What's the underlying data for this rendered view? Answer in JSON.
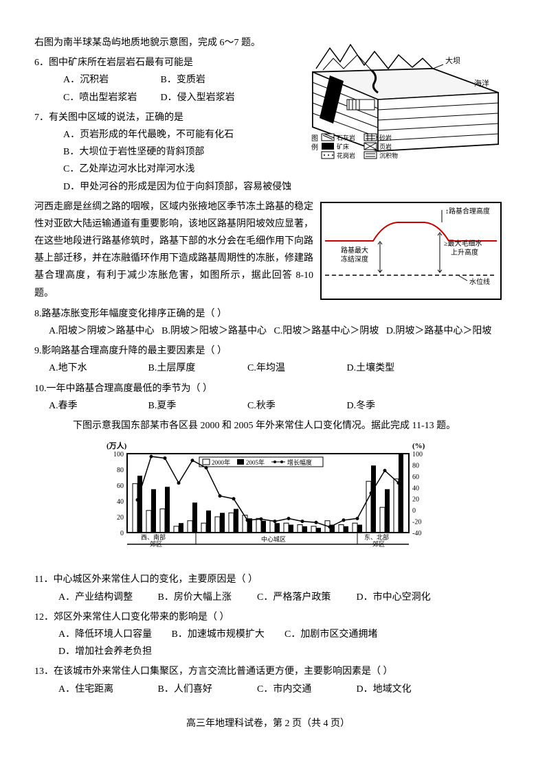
{
  "intro_6_7": "右图为南半球某岛屿地质地貌示意图，完成 6～7 题。",
  "q6": {
    "text": "6．图中矿床所在岩层岩石最有可能是",
    "A": "A．沉积岩",
    "B": "B．变质岩",
    "C": "C．喷出型岩浆岩",
    "D": "D．侵入型岩浆岩"
  },
  "q7": {
    "text": "7．有关图中区域的说法，正确的是",
    "A": "A．页岩形成的年代最晚，不可能有化石",
    "B": "B．大坝位于岩性坚硬的背斜顶部",
    "C": "C．乙处岸边河水比对岸河水浅",
    "D": "D．甲处河谷的形成是因为位于向斜顶部，容易被侵蚀"
  },
  "geo_diagram": {
    "labels": {
      "dam": "大坝",
      "ocean": "海洋",
      "legend_title": "图例",
      "limestone": "石灰岩",
      "ore": "矿床",
      "granite": "花岗岩",
      "sandstone": "砂岩",
      "shale": "页岩",
      "sediment": "沉积物"
    }
  },
  "intro_8_10": "        河西走廊是丝绸之路的咽喉，区域内张掖地区季节冻土路基的稳定性对亚欧大陆运输通道有重要影响，该地区路基阴阳坡效应显著，在这些地段进行路基修筑时，路基下部的水分会在毛细作用下向路基上部迁移，并在冻融循环作用下造成路基周期性的冻胀，修建路基合理高度，有利于减少冻胀危害，如图所示，据此回答 8-10 题。",
  "road_diagram": {
    "labels": {
      "height": "路基合理高度",
      "freeze_depth": "路基最大冻结深度",
      "capillary": "最大毛细水上升高度",
      "water_line": "水位线"
    },
    "road_color": "#cc0000"
  },
  "q8": {
    "text": "8.路基冻胀变形年幅度变化排序正确的是（    ）",
    "A": "A.阳坡＞阴坡＞路基中心",
    "B": "B.阴坡＞阳坡＞路基中心",
    "C": "C.阳坡＞路基中心＞阴坡",
    "D": "D.阴坡＞路基中心＞阳坡"
  },
  "q9": {
    "text": "9.影响路基合理高度升降的最主要因素是（    ）",
    "A": "A.地下水",
    "B": "B.土层厚度",
    "C": "C.年均温",
    "D": "D.土壤类型"
  },
  "q10": {
    "text": "10.一年中路基合理高度最低的季节为（    ）",
    "A": "A.春季",
    "B": "B.夏季",
    "C": "C.秋季",
    "D": "D.冬季"
  },
  "intro_11_13": "下图示意我国东部某市各区县 2000 和 2005 年外来常住人口变化情况。据此完成 11-13 题。",
  "chart": {
    "y1_label": "(万人)",
    "y2_label": "(%)",
    "y1_ticks": [
      "100",
      "80",
      "60",
      "40",
      "20",
      "0"
    ],
    "y2_ticks": [
      "100",
      "80",
      "60",
      "40",
      "20",
      "0",
      "-20",
      "-40"
    ],
    "legend": {
      "a": "2000年",
      "b": "2005年",
      "c": "增长幅度"
    },
    "x_sections": [
      "西、南部郊区",
      "中心城区",
      "东、北部郊区"
    ],
    "data_2000": [
      62,
      28,
      30,
      8,
      15,
      12,
      20,
      25,
      22,
      18,
      15,
      12,
      10,
      8,
      15,
      10,
      12,
      65,
      32,
      68
    ],
    "data_2005": [
      72,
      55,
      58,
      12,
      38,
      28,
      25,
      30,
      18,
      15,
      12,
      10,
      8,
      6,
      10,
      8,
      10,
      85,
      55,
      100
    ],
    "growth": [
      18,
      95,
      92,
      48,
      88,
      75,
      25,
      20,
      -18,
      -16,
      -20,
      -15,
      -20,
      -22,
      -30,
      -18,
      -15,
      30,
      70,
      48
    ],
    "colors": {
      "bar_2000": "#ffffff",
      "bar_2005": "#000000",
      "line": "#000000",
      "border": "#000000"
    }
  },
  "q11": {
    "text": "11．中心城区外来常住人口的变化，主要原因是（    ）",
    "A": "A．产业结构调整",
    "B": "B．房价大幅上涨",
    "C": "C．严格落户政策",
    "D": "D．市中心空洞化"
  },
  "q12": {
    "text": "12．郊区外来常住人口变化带来的影响是（    ）",
    "A": "A．降低环境人口容量",
    "B": "B．加速城市规模扩大",
    "C": "C．加剧市区交通拥堵",
    "D": "D．增加社会养老负担"
  },
  "q13": {
    "text": "13．在该城市外来常住人口集聚区，方言交流比普通话更方便，主要影响因素是（    ）",
    "A": "A．住宅距离",
    "B": "B．人们喜好",
    "C": "C．市内交通",
    "D": "D．地域文化"
  },
  "footer": "高三年地理科试卷，第 2 页（共 4 页）"
}
